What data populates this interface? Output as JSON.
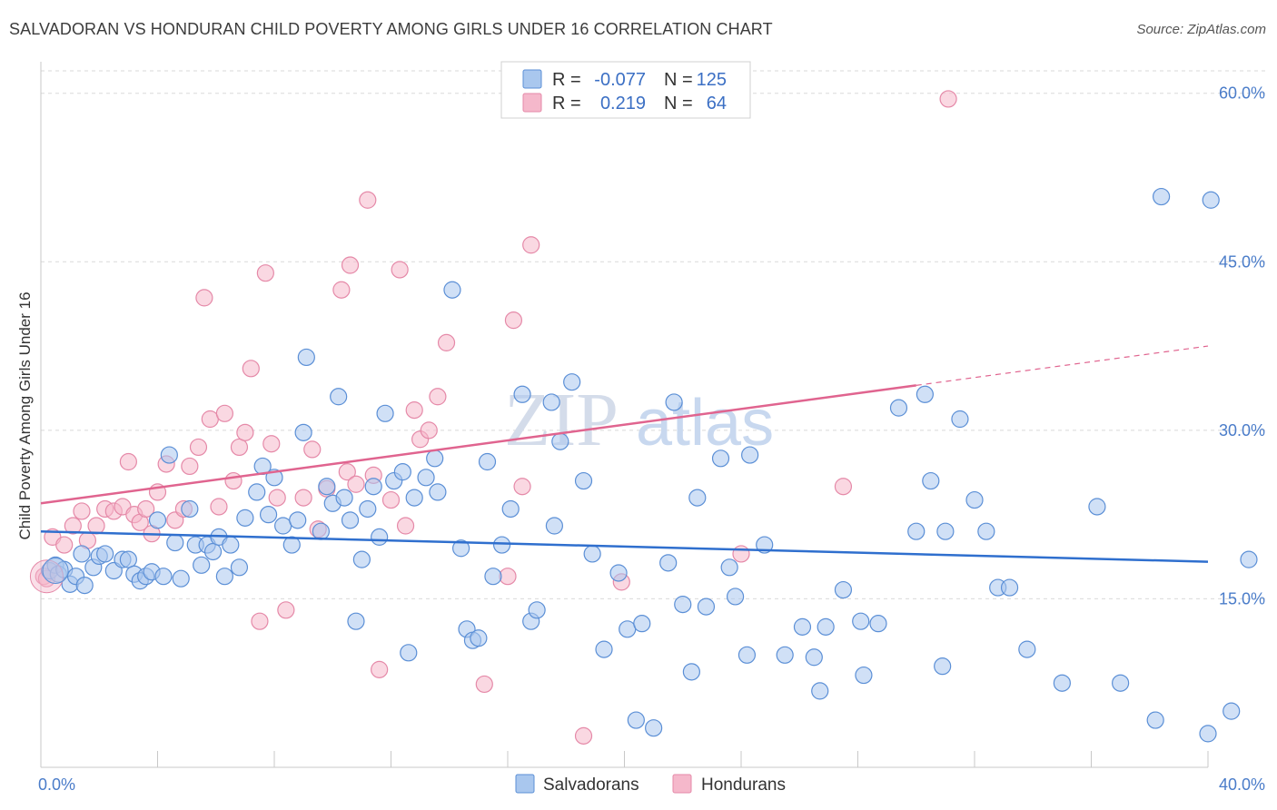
{
  "title": "SALVADORAN VS HONDURAN CHILD POVERTY AMONG GIRLS UNDER 16 CORRELATION CHART",
  "source": "Source: ZipAtlas.com",
  "watermark": {
    "zip": "ZIP",
    "atlas": "atlas"
  },
  "colors": {
    "blue_fill": "#a9c7ee",
    "blue_stroke": "#5b8fd6",
    "blue_line": "#2f6fce",
    "pink_fill": "#f5b8cb",
    "pink_stroke": "#e589a8",
    "pink_line": "#e0648f",
    "tick_text": "#4a7cc9",
    "grid": "#d9d9d9"
  },
  "legend": {
    "r_label": "R =",
    "n_label": "N =",
    "rows": [
      {
        "series": "Salvadorans",
        "r": "-0.077",
        "n": "125"
      },
      {
        "series": "Hondurans",
        "r": "0.219",
        "n": "64"
      }
    ]
  },
  "chart_data": {
    "type": "scatter",
    "title": "SALVADORAN VS HONDURAN CHILD POVERTY AMONG GIRLS UNDER 16 CORRELATION CHART",
    "xlabel": "",
    "ylabel": "Child Poverty Among Girls Under 16",
    "xlim": [
      0,
      40
    ],
    "ylim": [
      0,
      62
    ],
    "x_tick_labels": [
      "0.0%",
      "40.0%"
    ],
    "y_ticks": [
      15,
      30,
      45,
      60
    ],
    "y_tick_labels": [
      "15.0%",
      "30.0%",
      "45.0%",
      "60.0%"
    ],
    "grid": "horizontal dashed",
    "legend_position": "top-center and bottom-center",
    "series": [
      {
        "name": "Salvadorans",
        "trend": {
          "x": [
            0,
            40
          ],
          "y": [
            21.0,
            18.3
          ],
          "dashed_from": null
        },
        "points": [
          [
            0.3,
            17.5
          ],
          [
            0.5,
            18.0
          ],
          [
            0.6,
            17.2
          ],
          [
            0.8,
            17.6
          ],
          [
            1.0,
            16.3
          ],
          [
            1.2,
            17.0
          ],
          [
            1.4,
            19.0
          ],
          [
            1.5,
            16.2
          ],
          [
            1.8,
            17.8
          ],
          [
            2.0,
            18.8
          ],
          [
            2.2,
            19.0
          ],
          [
            2.5,
            17.5
          ],
          [
            2.8,
            18.5
          ],
          [
            3.0,
            18.5
          ],
          [
            3.2,
            17.2
          ],
          [
            3.4,
            16.6
          ],
          [
            3.6,
            17.0
          ],
          [
            3.8,
            17.4
          ],
          [
            4.0,
            22.0
          ],
          [
            4.2,
            17.0
          ],
          [
            4.4,
            27.8
          ],
          [
            4.6,
            20.0
          ],
          [
            4.8,
            16.8
          ],
          [
            5.1,
            23.0
          ],
          [
            5.3,
            19.8
          ],
          [
            5.5,
            18.0
          ],
          [
            5.7,
            19.8
          ],
          [
            5.9,
            19.2
          ],
          [
            6.1,
            20.5
          ],
          [
            6.3,
            17.0
          ],
          [
            6.5,
            19.8
          ],
          [
            6.8,
            17.8
          ],
          [
            7.0,
            22.2
          ],
          [
            7.4,
            24.5
          ],
          [
            7.6,
            26.8
          ],
          [
            7.8,
            22.5
          ],
          [
            8.0,
            25.8
          ],
          [
            8.3,
            21.5
          ],
          [
            8.6,
            19.8
          ],
          [
            8.8,
            22.0
          ],
          [
            9.0,
            29.8
          ],
          [
            9.1,
            36.5
          ],
          [
            9.6,
            21.0
          ],
          [
            9.8,
            25.0
          ],
          [
            10.0,
            23.5
          ],
          [
            10.2,
            33.0
          ],
          [
            10.4,
            24.0
          ],
          [
            10.6,
            22.0
          ],
          [
            10.8,
            13.0
          ],
          [
            11.0,
            18.5
          ],
          [
            11.2,
            23.0
          ],
          [
            11.4,
            25.0
          ],
          [
            11.6,
            20.5
          ],
          [
            11.8,
            31.5
          ],
          [
            12.1,
            25.5
          ],
          [
            12.4,
            26.3
          ],
          [
            12.6,
            10.2
          ],
          [
            12.8,
            24.0
          ],
          [
            13.2,
            25.8
          ],
          [
            13.5,
            27.5
          ],
          [
            13.6,
            24.5
          ],
          [
            14.1,
            42.5
          ],
          [
            14.4,
            19.5
          ],
          [
            14.6,
            12.3
          ],
          [
            14.8,
            11.3
          ],
          [
            15.0,
            11.5
          ],
          [
            15.3,
            27.2
          ],
          [
            15.5,
            17.0
          ],
          [
            15.8,
            19.8
          ],
          [
            16.1,
            23.0
          ],
          [
            16.5,
            33.2
          ],
          [
            16.8,
            13.0
          ],
          [
            17.0,
            14.0
          ],
          [
            17.5,
            32.5
          ],
          [
            17.6,
            21.5
          ],
          [
            17.8,
            29.0
          ],
          [
            18.2,
            34.3
          ],
          [
            18.6,
            25.5
          ],
          [
            18.9,
            19.0
          ],
          [
            19.3,
            10.5
          ],
          [
            19.8,
            17.3
          ],
          [
            20.1,
            12.3
          ],
          [
            20.4,
            4.2
          ],
          [
            20.6,
            12.8
          ],
          [
            21.0,
            3.5
          ],
          [
            21.5,
            18.2
          ],
          [
            21.7,
            32.5
          ],
          [
            22.0,
            14.5
          ],
          [
            22.3,
            8.5
          ],
          [
            22.5,
            24.0
          ],
          [
            22.8,
            14.3
          ],
          [
            23.3,
            27.5
          ],
          [
            23.6,
            17.8
          ],
          [
            23.8,
            15.2
          ],
          [
            24.2,
            10.0
          ],
          [
            24.3,
            27.8
          ],
          [
            24.8,
            19.8
          ],
          [
            25.5,
            10.0
          ],
          [
            26.1,
            12.5
          ],
          [
            26.5,
            9.8
          ],
          [
            26.7,
            6.8
          ],
          [
            26.9,
            12.5
          ],
          [
            27.5,
            15.8
          ],
          [
            28.1,
            13.0
          ],
          [
            28.2,
            8.2
          ],
          [
            28.7,
            12.8
          ],
          [
            29.4,
            32.0
          ],
          [
            30.0,
            21.0
          ],
          [
            30.3,
            33.2
          ],
          [
            30.5,
            25.5
          ],
          [
            30.9,
            9.0
          ],
          [
            31.0,
            21.0
          ],
          [
            31.5,
            31.0
          ],
          [
            32.0,
            23.8
          ],
          [
            32.4,
            21.0
          ],
          [
            32.8,
            16.0
          ],
          [
            33.2,
            16.0
          ],
          [
            33.8,
            10.5
          ],
          [
            35.0,
            7.5
          ],
          [
            36.2,
            23.2
          ],
          [
            37.0,
            7.5
          ],
          [
            38.2,
            4.2
          ],
          [
            38.4,
            50.8
          ],
          [
            40.0,
            3.0
          ],
          [
            40.1,
            50.5
          ],
          [
            40.8,
            5.0
          ],
          [
            41.4,
            18.5
          ]
        ]
      },
      {
        "name": "Hondurans",
        "trend": {
          "x": [
            0,
            40
          ],
          "y": [
            23.5,
            37.5
          ],
          "dashed_from": 30
        },
        "points": [
          [
            0.1,
            17.0
          ],
          [
            0.4,
            20.5
          ],
          [
            0.8,
            19.8
          ],
          [
            1.1,
            21.5
          ],
          [
            1.4,
            22.8
          ],
          [
            1.6,
            20.2
          ],
          [
            1.9,
            21.5
          ],
          [
            2.2,
            23.0
          ],
          [
            2.5,
            22.8
          ],
          [
            2.8,
            23.2
          ],
          [
            3.0,
            27.2
          ],
          [
            3.2,
            22.5
          ],
          [
            3.4,
            21.8
          ],
          [
            3.6,
            23.0
          ],
          [
            3.8,
            20.8
          ],
          [
            4.0,
            24.5
          ],
          [
            4.3,
            27.0
          ],
          [
            4.6,
            22.0
          ],
          [
            4.9,
            23.0
          ],
          [
            5.1,
            26.8
          ],
          [
            5.4,
            28.5
          ],
          [
            5.6,
            41.8
          ],
          [
            5.8,
            31.0
          ],
          [
            6.1,
            23.2
          ],
          [
            6.3,
            31.5
          ],
          [
            6.6,
            25.5
          ],
          [
            6.8,
            28.5
          ],
          [
            7.0,
            29.8
          ],
          [
            7.2,
            35.5
          ],
          [
            7.5,
            13.0
          ],
          [
            7.7,
            44.0
          ],
          [
            7.9,
            28.8
          ],
          [
            8.1,
            24.0
          ],
          [
            8.4,
            14.0
          ],
          [
            9.0,
            24.0
          ],
          [
            9.3,
            28.3
          ],
          [
            9.5,
            21.2
          ],
          [
            9.8,
            24.8
          ],
          [
            10.3,
            42.5
          ],
          [
            10.5,
            26.3
          ],
          [
            10.6,
            44.7
          ],
          [
            10.8,
            25.2
          ],
          [
            11.2,
            50.5
          ],
          [
            11.4,
            26.0
          ],
          [
            11.6,
            8.7
          ],
          [
            12.0,
            23.8
          ],
          [
            12.3,
            44.3
          ],
          [
            12.5,
            21.5
          ],
          [
            12.8,
            31.8
          ],
          [
            13.0,
            29.2
          ],
          [
            13.3,
            30.0
          ],
          [
            13.6,
            33.0
          ],
          [
            13.9,
            37.8
          ],
          [
            15.2,
            7.4
          ],
          [
            16.0,
            17.0
          ],
          [
            16.2,
            39.8
          ],
          [
            16.5,
            25.0
          ],
          [
            16.8,
            46.5
          ],
          [
            18.6,
            2.8
          ],
          [
            19.9,
            16.5
          ],
          [
            24.0,
            19.0
          ],
          [
            27.5,
            25.0
          ],
          [
            31.1,
            59.5
          ],
          [
            0.2,
            16.8
          ]
        ]
      }
    ]
  }
}
